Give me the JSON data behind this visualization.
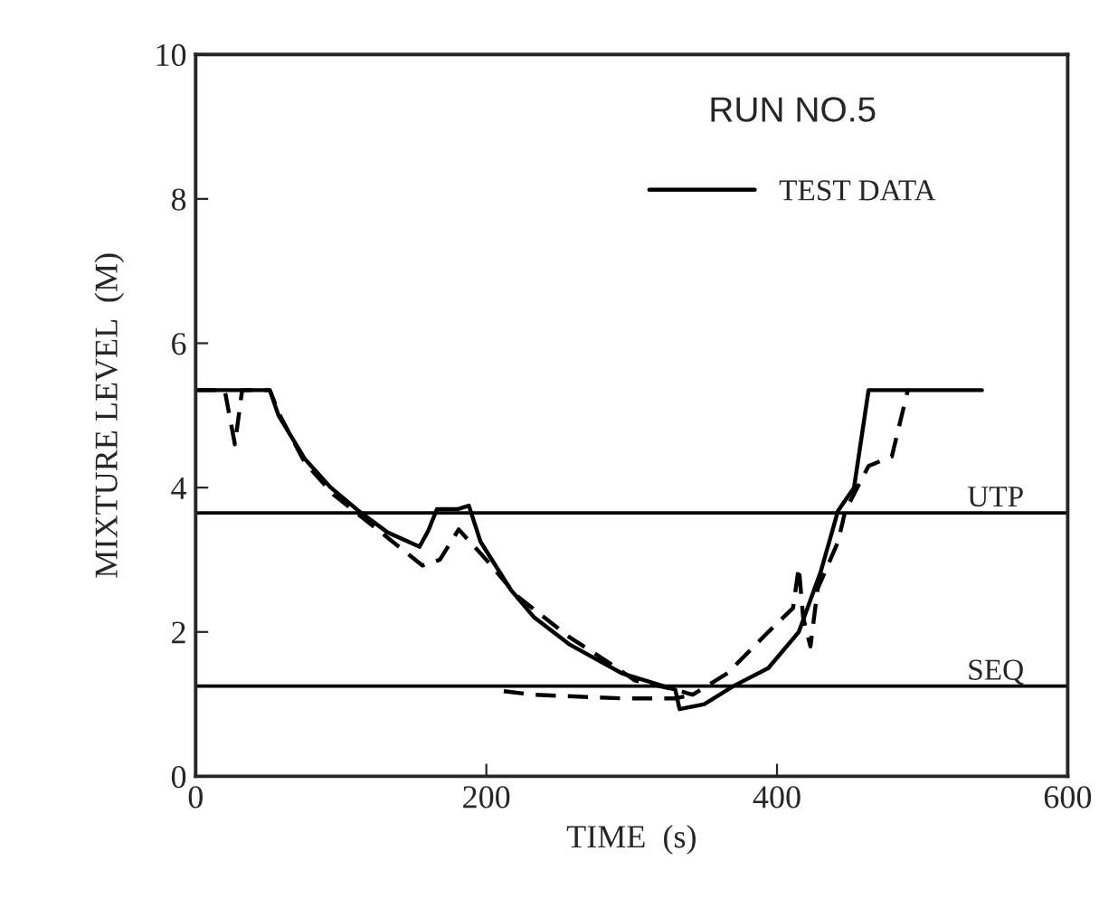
{
  "chart_data": {
    "type": "line",
    "xlabel": "TIME  (s)",
    "ylabel": "MIXTURE LEVEL  (M)",
    "legend_title": "RUN NO.5",
    "legend": "top right",
    "grid": false,
    "xlim": [
      0,
      600
    ],
    "xticks": [
      0,
      200,
      400,
      600
    ],
    "ylim": [
      0,
      10
    ],
    "yticks": [
      0,
      2,
      4,
      6,
      8,
      10
    ],
    "series": [
      {
        "name": "TEST DATA",
        "color": "#000000",
        "line_style": "solid",
        "x": [
          0,
          51,
          57,
          75,
          93,
          112,
          132,
          154,
          160,
          166,
          180,
          188,
          196,
          217,
          233,
          257,
          293,
          330,
          333,
          350,
          370,
          394,
          415,
          430,
          442,
          453,
          463,
          541
        ],
        "values": [
          5.35,
          5.35,
          5.0,
          4.4,
          4.0,
          3.68,
          3.38,
          3.18,
          3.4,
          3.7,
          3.7,
          3.75,
          3.25,
          2.58,
          2.2,
          1.83,
          1.43,
          1.2,
          0.93,
          1.0,
          1.25,
          1.5,
          2.0,
          2.83,
          3.68,
          4.0,
          5.35,
          5.35
        ]
      },
      {
        "color": "#000000",
        "line_style": "dashed",
        "x": [
          0,
          20,
          27,
          32,
          51,
          58,
          75,
          95,
          120,
          156,
          168,
          181,
          200,
          221,
          257,
          290,
          302,
          330,
          342,
          366,
          394,
          411,
          415,
          418,
          423,
          428,
          442,
          447,
          463,
          479,
          490
        ],
        "values": [
          5.35,
          5.35,
          4.6,
          5.35,
          5.35,
          5.0,
          4.35,
          3.9,
          3.5,
          2.92,
          3.0,
          3.42,
          3.0,
          2.5,
          1.93,
          1.5,
          1.33,
          1.2,
          1.13,
          1.43,
          2.0,
          2.33,
          2.9,
          2.2,
          1.8,
          2.6,
          3.25,
          3.68,
          4.3,
          4.43,
          5.35
        ]
      },
      {
        "color": "#000000",
        "line_style": "dashed",
        "x": [
          212,
          233,
          293,
          330,
          342
        ],
        "values": [
          1.18,
          1.13,
          1.08,
          1.08,
          1.13
        ]
      }
    ],
    "ref_lines": [
      {
        "axis": "y",
        "value": 3.65,
        "label": "UTP"
      },
      {
        "axis": "y",
        "value": 1.25,
        "label": "SEQ"
      }
    ]
  }
}
